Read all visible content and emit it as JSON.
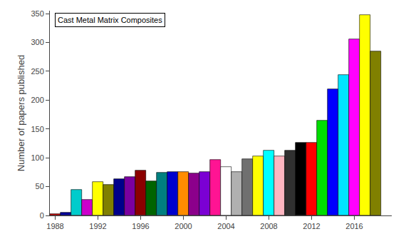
{
  "chart_data": {
    "type": "bar",
    "title": "Cast Metal Matrix Composites",
    "ylabel": "Number of papers published",
    "x": [
      1988,
      1989,
      1990,
      1991,
      1992,
      1993,
      1994,
      1995,
      1996,
      1997,
      1998,
      1999,
      2000,
      2001,
      2002,
      2003,
      2004,
      2005,
      2006,
      2007,
      2008,
      2009,
      2010,
      2011,
      2012,
      2013,
      2014,
      2015,
      2016,
      2017,
      2018
    ],
    "values": [
      3,
      5,
      45,
      27,
      58,
      53,
      63,
      67,
      78,
      59,
      74,
      75,
      75,
      73,
      75,
      97,
      84,
      75,
      98,
      103,
      112,
      103,
      113,
      126,
      126,
      165,
      219,
      244,
      305,
      347,
      285
    ],
    "colors": [
      "#cc0000",
      "#000099",
      "#00cccc",
      "#cc00cc",
      "#ffff00",
      "#808000",
      "#00008b",
      "#7b00a0",
      "#8b0000",
      "#006400",
      "#008080",
      "#0000cd",
      "#ff8c00",
      "#8b008b",
      "#7b00d4",
      "#ff1493",
      "#ffffff",
      "#b0b0b0",
      "#707070",
      "#ffff00",
      "#00ffff",
      "#ffb6c1",
      "#303030",
      "#000000",
      "#ff0000",
      "#00dd00",
      "#0000ff",
      "#00e5ff",
      "#ff00ff",
      "#ffff00",
      "#808000"
    ],
    "xlim": [
      1987.5,
      2019.5
    ],
    "xticks": [
      1988,
      1992,
      1996,
      2000,
      2004,
      2008,
      2012,
      2016
    ],
    "ylim": [
      0,
      355
    ],
    "yticks": [
      0,
      50,
      100,
      150,
      200,
      250,
      300,
      350
    ],
    "grid": false
  }
}
